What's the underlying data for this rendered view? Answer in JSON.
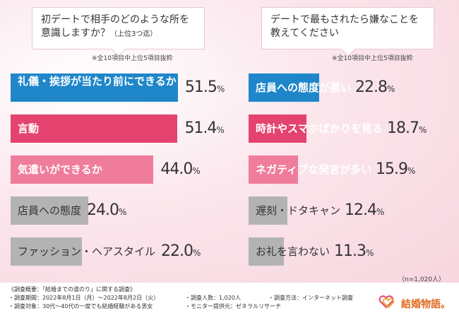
{
  "questions": {
    "left": "初デートで相手のどのような所を意識しますか？",
    "left_sub": "（上位3つ迄）",
    "right": "デートで最もされたら嫌なことを教えてください"
  },
  "notes": {
    "left": "※全10項目中上位5項目抜粋",
    "right": "※全10項目中上位5項目抜粋"
  },
  "chart_data": [
    {
      "type": "bar",
      "orientation": "horizontal",
      "title": "初デートで相手のどのような所を意識しますか？（上位3つ迄）",
      "unit": "%",
      "categories": [
        "礼儀・挨拶が当たり前にできるか",
        "言動",
        "気遣いができるか",
        "店員への態度",
        "ファッション・ヘアスタイル"
      ],
      "values": [
        51.5,
        51.4,
        44.0,
        24.0,
        22.0
      ],
      "value_labels": [
        "51.5",
        "51.4",
        "44.0",
        "24.0",
        "22.0"
      ],
      "colors": [
        "#1f86c9",
        "#e5436f",
        "#f07c9c",
        "#b3b3b3",
        "#b3b3b3"
      ]
    },
    {
      "type": "bar",
      "orientation": "horizontal",
      "title": "デートで最もされたら嫌なことを教えてください",
      "unit": "%",
      "categories": [
        "店員への態度が悪い",
        "時計やスマホばかりを見る",
        "ネガティブな発言が多い",
        "遅刻・ドタキャン",
        "お礼を言わない"
      ],
      "values": [
        22.8,
        18.7,
        15.9,
        12.4,
        11.3
      ],
      "value_labels": [
        "22.8",
        "18.7",
        "15.9",
        "12.4",
        "11.3"
      ],
      "colors": [
        "#1f86c9",
        "#e5436f",
        "#f07c9c",
        "#b3b3b3",
        "#b3b3b3"
      ]
    }
  ],
  "sample": "（n=1,020人）",
  "footer": {
    "line1": "《調査概要：「結婚までの道のり」に関する調査》",
    "line2": "・調査期間：2022年8月1日（月）～2022年8月2日（火）",
    "line3": "・調査対象：30代～40代の一度でも結婚経験がある男女",
    "line4": "・調査人数：1,020人",
    "line5": "・モニター提供元：ゼネラルリサーチ",
    "line6": "・調査方法：インターネット調査"
  },
  "logo": "結婚物語。"
}
